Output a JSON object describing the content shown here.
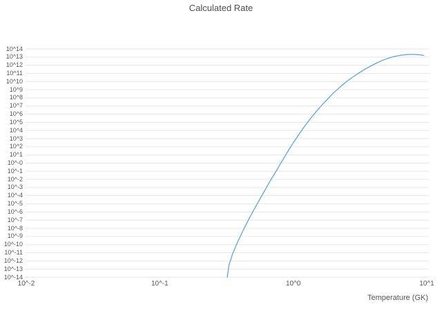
{
  "page": {
    "title": "Calculated Rate"
  },
  "chart_data": {
    "type": "line",
    "title": "Calculated Rate",
    "xlabel": "Temperature (GK)",
    "ylabel": "",
    "x_scale": "log",
    "y_scale": "log",
    "xlim_log10": [
      -2,
      1
    ],
    "ylim_log10": [
      -14,
      14
    ],
    "grid": "horizontal",
    "legend": "none",
    "x_tick_labels": [
      "10^-2",
      "10^-1",
      "10^0",
      "10^1"
    ],
    "x_tick_log10": [
      -2,
      -1,
      0,
      1
    ],
    "y_tick_labels": [
      "10^14",
      "10^13",
      "10^12",
      "10^11",
      "10^10",
      "10^9",
      "10^8",
      "10^7",
      "10^6",
      "10^5",
      "10^4",
      "10^3",
      "10^2",
      "10^1",
      "10^-0",
      "10^-1",
      "10^-2",
      "10^-3",
      "10^-4",
      "10^-5",
      "10^-6",
      "10^-7",
      "10^-8",
      "10^-9",
      "10^-10",
      "10^-11",
      "10^-12",
      "10^-13",
      "10^-14"
    ],
    "y_tick_log10": [
      14,
      13,
      12,
      11,
      10,
      9,
      8,
      7,
      6,
      5,
      4,
      3,
      2,
      1,
      0,
      -1,
      -2,
      -3,
      -4,
      -5,
      -6,
      -7,
      -8,
      -9,
      -10,
      -11,
      -12,
      -13,
      -14
    ],
    "colors": {
      "line": "#5da5da",
      "grid": "#e6e6e6",
      "text": "#555555",
      "title": "#4d4d4d",
      "background": "#ffffff"
    },
    "series": [
      {
        "name": "calculated-rate",
        "color": "#5da5da",
        "T_GK": [
          0.32,
          0.33,
          0.35,
          0.38,
          0.42,
          0.46,
          0.5,
          0.55,
          0.6,
          0.65,
          0.7,
          0.75,
          0.8,
          0.85,
          0.9,
          1.0,
          1.1,
          1.2,
          1.35,
          1.5,
          1.7,
          2.0,
          2.3,
          2.6,
          3.0,
          3.5,
          4.0,
          4.5,
          5.0,
          5.5,
          6.0,
          6.5,
          7.0,
          7.5,
          8.0,
          8.5,
          9.0,
          9.5
        ],
        "log10_rate": [
          -14,
          -12.5,
          -11.2,
          -9.8,
          -8.3,
          -7.0,
          -5.9,
          -4.7,
          -3.6,
          -2.6,
          -1.7,
          -0.9,
          -0.1,
          0.6,
          1.3,
          2.5,
          3.5,
          4.4,
          5.5,
          6.4,
          7.4,
          8.6,
          9.5,
          10.2,
          10.9,
          11.6,
          12.1,
          12.5,
          12.8,
          13.0,
          13.15,
          13.25,
          13.3,
          13.33,
          13.33,
          13.3,
          13.27,
          13.2
        ]
      }
    ]
  }
}
